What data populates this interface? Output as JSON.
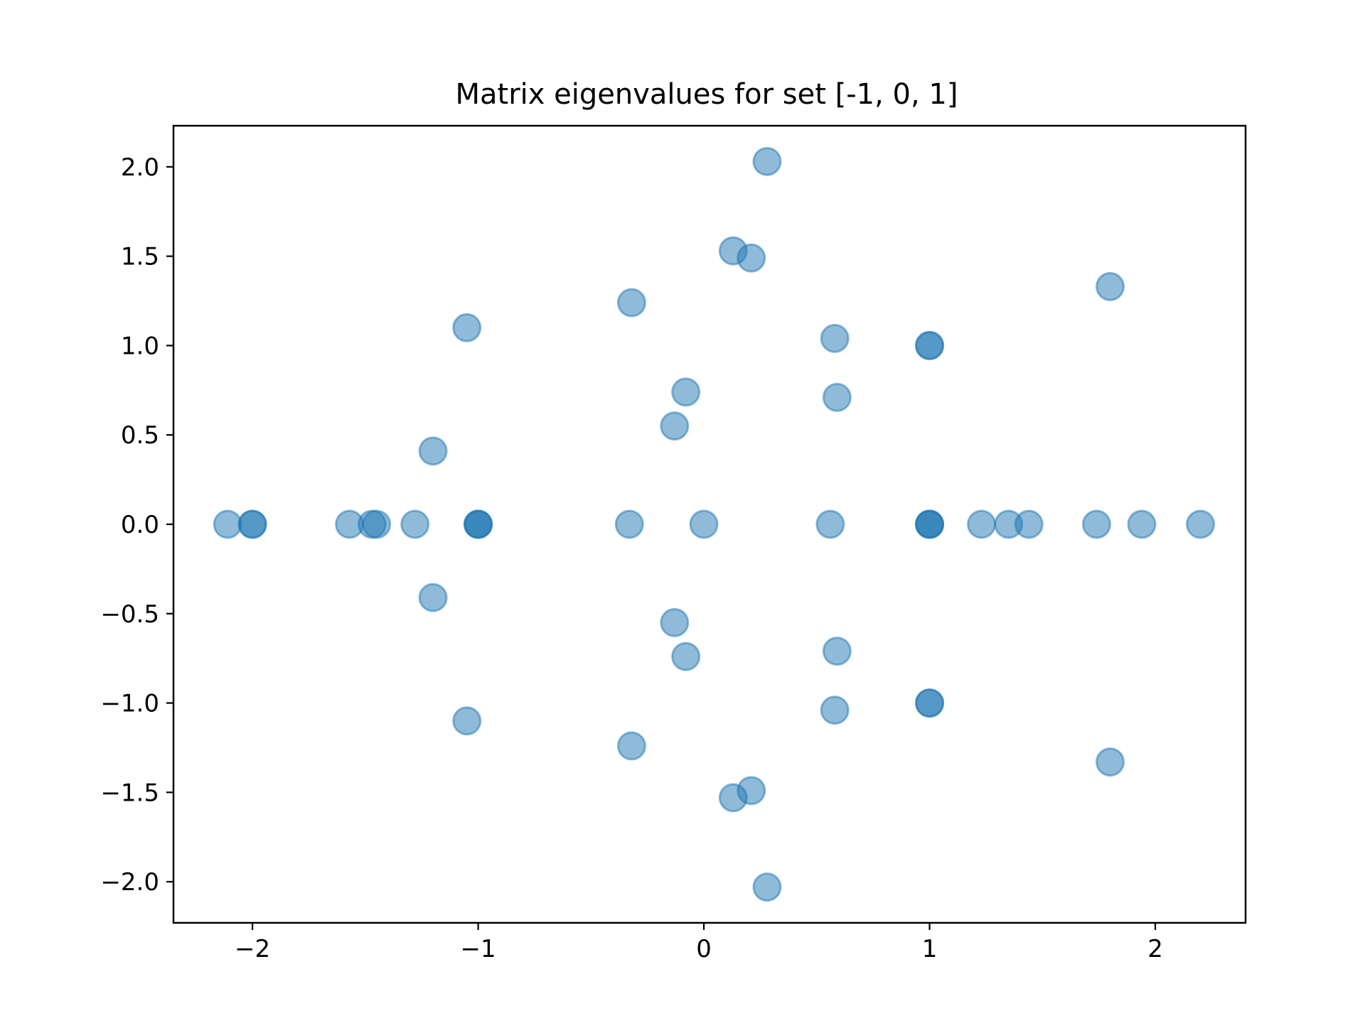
{
  "chart_data": {
    "type": "scatter",
    "title": "Matrix eigenvalues for set [-1, 0, 1]",
    "xlabel": "",
    "ylabel": "",
    "xlim": [
      -2.35,
      2.4
    ],
    "ylim": [
      -2.23,
      2.23
    ],
    "xticks": [
      -2,
      -1,
      0,
      1,
      2
    ],
    "xtick_labels": [
      "−2",
      "−1",
      "0",
      "1",
      "2"
    ],
    "yticks": [
      2.0,
      1.5,
      1.0,
      0.5,
      0.0,
      -0.5,
      -1.0,
      -1.5,
      -2.0
    ],
    "ytick_labels": [
      "2.0",
      "1.5",
      "1.0",
      "0.5",
      "0.0",
      "−0.5",
      "−1.0",
      "−1.5",
      "−2.0"
    ],
    "grid": false,
    "marker_color": "#1f77b4",
    "marker_alpha": 0.5,
    "points": [
      {
        "x": 0.28,
        "y": 2.03
      },
      {
        "x": 0.13,
        "y": 1.53
      },
      {
        "x": 0.21,
        "y": 1.49
      },
      {
        "x": 1.8,
        "y": 1.33
      },
      {
        "x": -0.32,
        "y": 1.24
      },
      {
        "x": -1.05,
        "y": 1.1
      },
      {
        "x": 0.58,
        "y": 1.04
      },
      {
        "x": 1.0,
        "y": 1.0
      },
      {
        "x": 1.0,
        "y": 1.0
      },
      {
        "x": -0.08,
        "y": 0.74
      },
      {
        "x": 0.59,
        "y": 0.71
      },
      {
        "x": -0.13,
        "y": 0.55
      },
      {
        "x": -1.2,
        "y": 0.41
      },
      {
        "x": -2.11,
        "y": 0.0
      },
      {
        "x": -2.0,
        "y": 0.0
      },
      {
        "x": -2.0,
        "y": 0.0
      },
      {
        "x": -1.57,
        "y": 0.0
      },
      {
        "x": -1.47,
        "y": 0.0
      },
      {
        "x": -1.45,
        "y": 0.0
      },
      {
        "x": -1.28,
        "y": 0.0
      },
      {
        "x": -1.0,
        "y": 0.0
      },
      {
        "x": -1.0,
        "y": 0.0
      },
      {
        "x": -1.0,
        "y": 0.0
      },
      {
        "x": -0.33,
        "y": 0.0
      },
      {
        "x": 0.0,
        "y": 0.0
      },
      {
        "x": 0.56,
        "y": 0.0
      },
      {
        "x": 1.0,
        "y": 0.0
      },
      {
        "x": 1.0,
        "y": 0.0
      },
      {
        "x": 1.0,
        "y": 0.0
      },
      {
        "x": 1.23,
        "y": 0.0
      },
      {
        "x": 1.35,
        "y": 0.0
      },
      {
        "x": 1.44,
        "y": 0.0
      },
      {
        "x": 1.74,
        "y": 0.0
      },
      {
        "x": 1.94,
        "y": 0.0
      },
      {
        "x": 2.2,
        "y": 0.0
      },
      {
        "x": -1.2,
        "y": -0.41
      },
      {
        "x": -0.13,
        "y": -0.55
      },
      {
        "x": 0.59,
        "y": -0.71
      },
      {
        "x": -0.08,
        "y": -0.74
      },
      {
        "x": 1.0,
        "y": -1.0
      },
      {
        "x": 1.0,
        "y": -1.0
      },
      {
        "x": 0.58,
        "y": -1.04
      },
      {
        "x": -1.05,
        "y": -1.1
      },
      {
        "x": -0.32,
        "y": -1.24
      },
      {
        "x": 1.8,
        "y": -1.33
      },
      {
        "x": 0.21,
        "y": -1.49
      },
      {
        "x": 0.13,
        "y": -1.53
      },
      {
        "x": 0.28,
        "y": -2.03
      }
    ]
  }
}
